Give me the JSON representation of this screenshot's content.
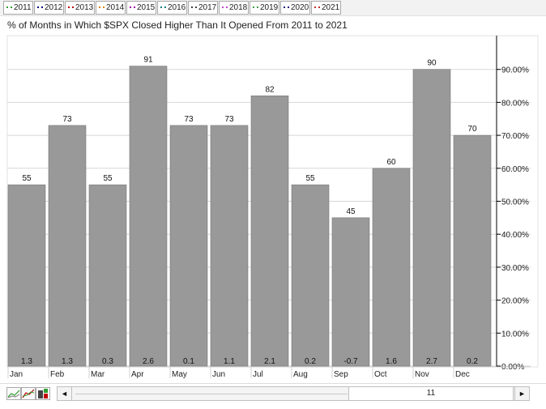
{
  "legend": [
    {
      "label": "2011",
      "color": "#2e9e2e"
    },
    {
      "label": "2012",
      "color": "#000080"
    },
    {
      "label": "2013",
      "color": "#c00000"
    },
    {
      "label": "2014",
      "color": "#e08000"
    },
    {
      "label": "2015",
      "color": "#a000a0"
    },
    {
      "label": "2016",
      "color": "#008080"
    },
    {
      "label": "2017",
      "color": "#404040"
    },
    {
      "label": "2018",
      "color": "#d040d0"
    },
    {
      "label": "2019",
      "color": "#40a040"
    },
    {
      "label": "2020",
      "color": "#202080"
    },
    {
      "label": "2021",
      "color": "#c03030"
    }
  ],
  "colors": {
    "bar": "#999999",
    "grid": "#d8d8d8",
    "axis": "#000000"
  },
  "chart_data": {
    "type": "bar",
    "title": "% of Months in Which $SPX Closed Higher Than It Opened From 2011 to 2021",
    "categories": [
      "Jan",
      "Feb",
      "Mar",
      "Apr",
      "May",
      "Jun",
      "Jul",
      "Aug",
      "Sep",
      "Oct",
      "Nov",
      "Dec"
    ],
    "values": [
      55,
      73,
      55,
      91,
      73,
      73,
      82,
      55,
      45,
      60,
      90,
      70
    ],
    "value_labels": [
      "55",
      "73",
      "55",
      "91",
      "73",
      "73",
      "82",
      "55",
      "45",
      "60",
      "90",
      "70"
    ],
    "bottom_labels": [
      "1.3",
      "1.3",
      "0.3",
      "2.6",
      "0.1",
      "1.1",
      "2.1",
      "0.2",
      "-0.7",
      "1.6",
      "2.7",
      "0.2"
    ],
    "y_ticks": [
      0,
      10,
      20,
      30,
      40,
      50,
      60,
      70,
      80,
      90
    ],
    "y_tick_labels": [
      "0.00%",
      "10.00%",
      "20.00%",
      "30.00%",
      "40.00%",
      "50.00%",
      "60.00%",
      "70.00%",
      "80.00%",
      "90.00%"
    ],
    "ylim": [
      0,
      100
    ],
    "grid": true,
    "y_axis_side": "right"
  },
  "scrollbar": {
    "left_arrow": "◄",
    "right_arrow": "►",
    "value": "11"
  }
}
